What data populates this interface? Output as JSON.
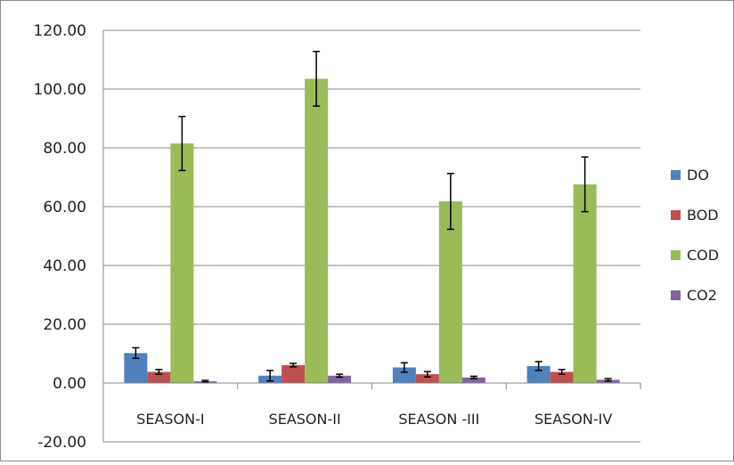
{
  "chart_data": {
    "type": "bar",
    "title": "",
    "xlabel": "",
    "ylabel": "",
    "ylim": [
      -20,
      120
    ],
    "yticks": [
      "-20.00",
      "0.00",
      "20.00",
      "40.00",
      "60.00",
      "80.00",
      "100.00",
      "120.00"
    ],
    "categories": [
      "SEASON-I",
      "SEASON-II",
      "SEASON -III",
      "SEASON-IV"
    ],
    "grid": true,
    "legend_position": "right",
    "series": [
      {
        "name": "DO",
        "color": "#4f81bd",
        "values": [
          10.2,
          2.5,
          5.3,
          5.8
        ],
        "errors": [
          1.8,
          1.8,
          1.6,
          1.5
        ]
      },
      {
        "name": "BOD",
        "color": "#c0504d",
        "values": [
          3.8,
          6.1,
          3.0,
          3.8
        ],
        "errors": [
          0.8,
          0.6,
          0.9,
          0.8
        ]
      },
      {
        "name": "COD",
        "color": "#9bbb59",
        "values": [
          81.5,
          103.5,
          61.8,
          67.6
        ],
        "errors": [
          9.2,
          9.3,
          9.5,
          9.3
        ]
      },
      {
        "name": "CO2",
        "color": "#8064a2",
        "values": [
          0.6,
          2.5,
          1.9,
          1.1
        ],
        "errors": [
          0.3,
          0.5,
          0.4,
          0.4
        ]
      }
    ]
  }
}
